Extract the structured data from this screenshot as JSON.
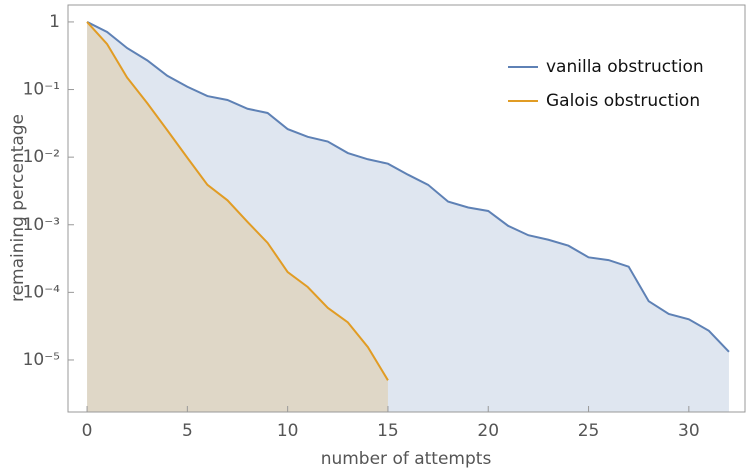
{
  "chart_data": {
    "type": "line",
    "x_label": "number of attempts",
    "y_label": "remaining percentage",
    "x": [
      0,
      1,
      2,
      3,
      4,
      5,
      6,
      7,
      8,
      9,
      10,
      11,
      12,
      13,
      14,
      15,
      16,
      17,
      18,
      19,
      20,
      21,
      22,
      23,
      24,
      25,
      26,
      27,
      28,
      29,
      30,
      31,
      32
    ],
    "series": [
      {
        "name": "vanilla obstruction",
        "color": "#5e81b5",
        "x": [
          0,
          1,
          2,
          3,
          4,
          5,
          6,
          7,
          8,
          9,
          10,
          11,
          12,
          13,
          14,
          15,
          16,
          17,
          18,
          19,
          20,
          21,
          22,
          23,
          24,
          25,
          26,
          27,
          28,
          29,
          30,
          31,
          32
        ],
        "values": [
          1,
          0.71,
          0.41,
          0.27,
          0.16,
          0.11,
          0.08,
          0.07,
          0.052,
          0.045,
          0.026,
          0.02,
          0.017,
          0.0115,
          0.0093,
          0.008,
          0.0055,
          0.0039,
          0.0022,
          0.0018,
          0.0016,
          0.00096,
          0.0007,
          0.0006,
          0.00049,
          0.00033,
          0.0003,
          0.00024,
          7.4e-05,
          4.8e-05,
          4e-05,
          2.7e-05,
          1.32e-05
        ]
      },
      {
        "name": "Galois obstruction",
        "color": "#e19c24",
        "x": [
          0,
          1,
          2,
          3,
          4,
          5,
          6,
          7,
          8,
          9,
          10,
          11,
          12,
          13,
          14,
          15
        ],
        "values": [
          1,
          0.47,
          0.15,
          0.063,
          0.025,
          0.0098,
          0.0039,
          0.0023,
          0.0011,
          0.00054,
          0.0002,
          0.00012,
          5.9e-05,
          3.6e-05,
          1.55e-05,
          5e-06
        ]
      }
    ],
    "filled": true,
    "y_log": true,
    "legend": "upper right",
    "xlim": [
      -0.95,
      32.8
    ],
    "xticks": [
      0,
      5,
      10,
      15,
      20,
      25,
      30
    ],
    "ylim": [
      1.7e-06,
      1.78
    ],
    "yticks": [
      1,
      {
        "value": 0.1,
        "label": "10⁻¹"
      },
      {
        "value": 0.01,
        "label": "10⁻²"
      },
      {
        "value": 0.001,
        "label": "10⁻³"
      },
      {
        "value": 0.0001,
        "label": "10⁻⁴"
      },
      {
        "value": 1e-05,
        "label": "10⁻⁵"
      }
    ]
  }
}
